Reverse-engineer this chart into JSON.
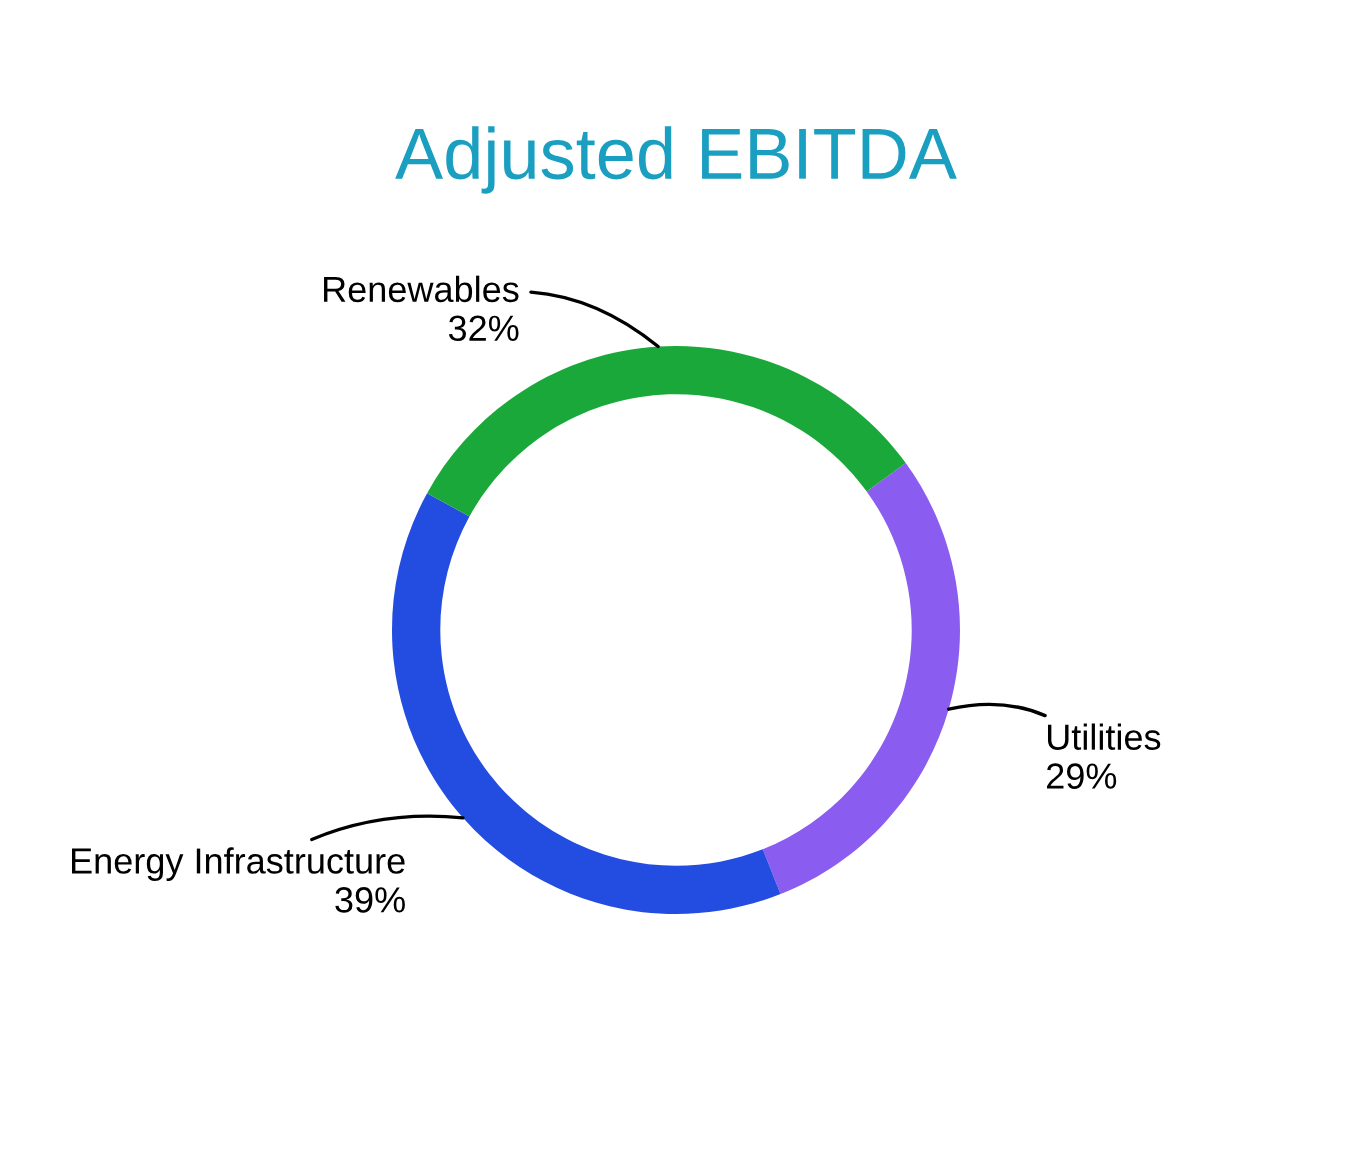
{
  "chart_data": {
    "type": "donut",
    "title": "Adjusted EBITDA",
    "categories": [
      "Utilities",
      "Energy Infrastructure",
      "Renewables"
    ],
    "values": [
      29,
      39,
      32
    ],
    "value_labels": [
      "29%",
      "39%",
      "32%"
    ],
    "colors": [
      "#8b5cf0",
      "#234de0",
      "#1aa83a"
    ],
    "legend": false
  }
}
